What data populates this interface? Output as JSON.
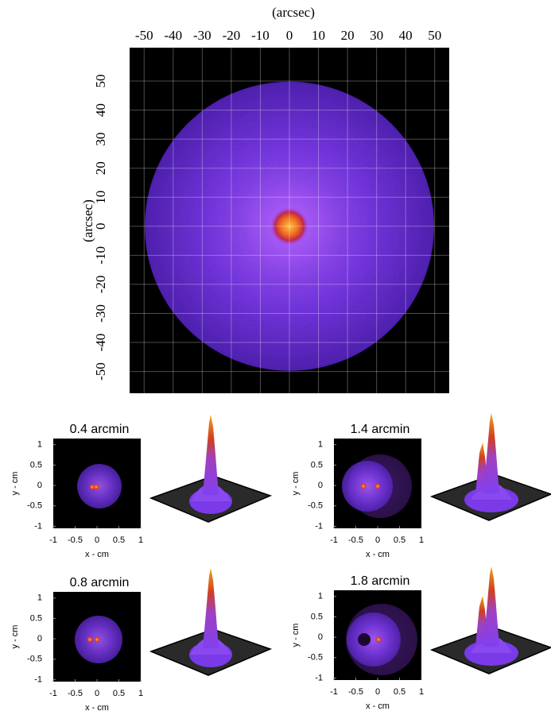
{
  "chart_data": [
    {
      "type": "heatmap",
      "xlabel": "(arcsec)",
      "ylabel": "(arcsec)",
      "xlim": [
        -55,
        55
      ],
      "ylim": [
        -57.5,
        61.5
      ],
      "xticks": [
        -50,
        -40,
        -30,
        -20,
        -10,
        0,
        10,
        20,
        30,
        40,
        50
      ],
      "yticks": [
        -50,
        -40,
        -30,
        -20,
        -10,
        0,
        10,
        20,
        30,
        40,
        50
      ],
      "grid": true
    },
    {
      "type": "heatmap",
      "title": "0.4 arcmin",
      "xlabel": "x - cm",
      "ylabel": "y - cm",
      "xlim": [
        -1,
        1
      ],
      "ylim": [
        -1.05,
        1.15
      ],
      "xticks": [
        -1,
        -0.5,
        0,
        0.5,
        1
      ],
      "yticks": [
        -1,
        -0.5,
        0,
        0.5,
        1
      ],
      "grid": false
    },
    {
      "type": "heatmap",
      "title": "1.4 arcmin",
      "xlabel": "x - cm",
      "ylabel": "y - cm",
      "xlim": [
        -1,
        1
      ],
      "ylim": [
        -1.05,
        1.15
      ],
      "xticks": [
        -1,
        -0.5,
        0,
        0.5,
        1
      ],
      "yticks": [
        -1,
        -0.5,
        0,
        0.5,
        1
      ],
      "grid": false
    },
    {
      "type": "heatmap",
      "title": "0.8 arcmin",
      "xlabel": "x - cm",
      "ylabel": "y - cm",
      "xlim": [
        -1,
        1
      ],
      "ylim": [
        -1.05,
        1.15
      ],
      "xticks": [
        -1,
        -0.5,
        0,
        0.5,
        1
      ],
      "yticks": [
        -1,
        -0.5,
        0,
        0.5,
        1
      ],
      "grid": false
    },
    {
      "type": "heatmap",
      "title": "1.8 arcmin",
      "xlabel": "x - cm",
      "ylabel": "y - cm",
      "xlim": [
        -1,
        1
      ],
      "ylim": [
        -1.05,
        1.15
      ],
      "xticks": [
        -1,
        -0.5,
        0,
        0.5,
        1
      ],
      "yticks": [
        -1,
        -0.5,
        0,
        0.5,
        1
      ],
      "grid": false
    }
  ]
}
